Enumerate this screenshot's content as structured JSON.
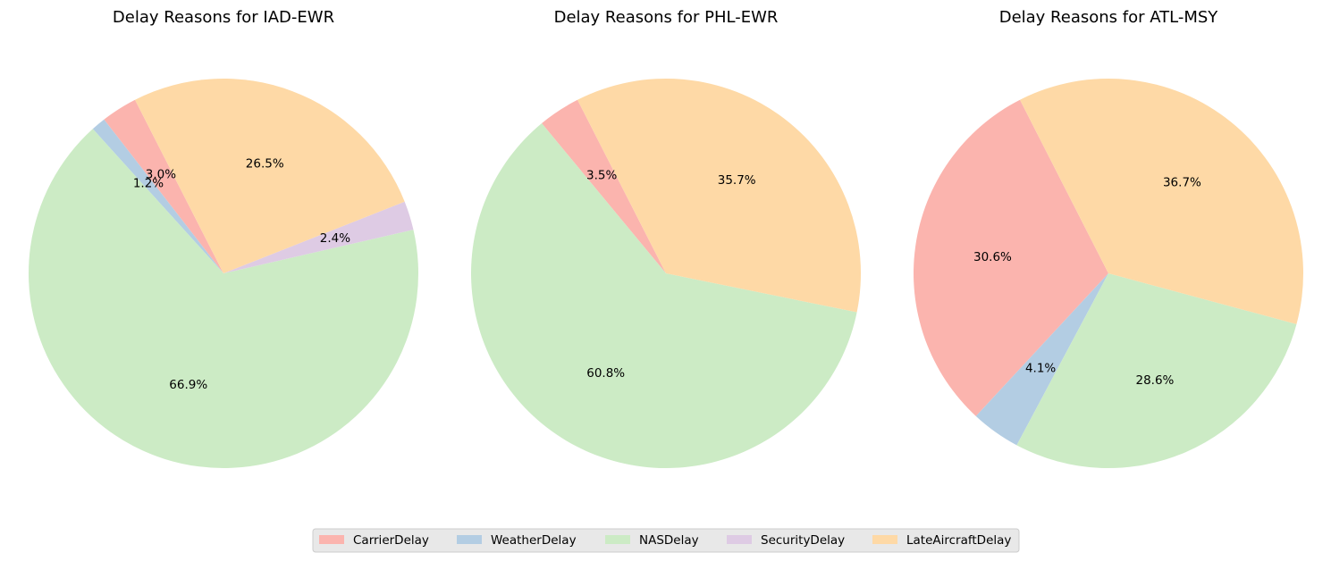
{
  "chart_data": [
    {
      "type": "pie",
      "title": "Delay Reasons for IAD-EWR",
      "slices": [
        {
          "label": "CarrierDelay",
          "value": 3.0,
          "pct_label": "3.0%"
        },
        {
          "label": "WeatherDelay",
          "value": 1.2,
          "pct_label": "1.2%"
        },
        {
          "label": "NASDelay",
          "value": 66.9,
          "pct_label": "66.9%"
        },
        {
          "label": "SecurityDelay",
          "value": 2.4,
          "pct_label": "2.4%"
        },
        {
          "label": "LateAircraftDelay",
          "value": 26.5,
          "pct_label": "26.5%"
        }
      ]
    },
    {
      "type": "pie",
      "title": "Delay Reasons for PHL-EWR",
      "slices": [
        {
          "label": "CarrierDelay",
          "value": 3.5,
          "pct_label": "3.5%"
        },
        {
          "label": "NASDelay",
          "value": 60.8,
          "pct_label": "60.8%"
        },
        {
          "label": "LateAircraftDelay",
          "value": 35.7,
          "pct_label": "35.7%"
        }
      ]
    },
    {
      "type": "pie",
      "title": "Delay Reasons for ATL-MSY",
      "slices": [
        {
          "label": "CarrierDelay",
          "value": 30.6,
          "pct_label": "30.6%"
        },
        {
          "label": "WeatherDelay",
          "value": 4.1,
          "pct_label": "4.1%"
        },
        {
          "label": "NASDelay",
          "value": 28.6,
          "pct_label": "28.6%"
        },
        {
          "label": "LateAircraftDelay",
          "value": 36.7,
          "pct_label": "36.7%"
        }
      ]
    }
  ],
  "legend": {
    "placement": "bottom-center",
    "items": [
      {
        "label": "CarrierDelay",
        "color": "#fbb4ae"
      },
      {
        "label": "WeatherDelay",
        "color": "#b3cde3"
      },
      {
        "label": "NASDelay",
        "color": "#ccebc5"
      },
      {
        "label": "SecurityDelay",
        "color": "#decbe4"
      },
      {
        "label": "LateAircraftDelay",
        "color": "#fed9a6"
      }
    ]
  },
  "colors": {
    "CarrierDelay": "#fbb4ae",
    "WeatherDelay": "#b3cde3",
    "NASDelay": "#ccebc5",
    "SecurityDelay": "#decbe4",
    "LateAircraftDelay": "#fed9a6"
  }
}
